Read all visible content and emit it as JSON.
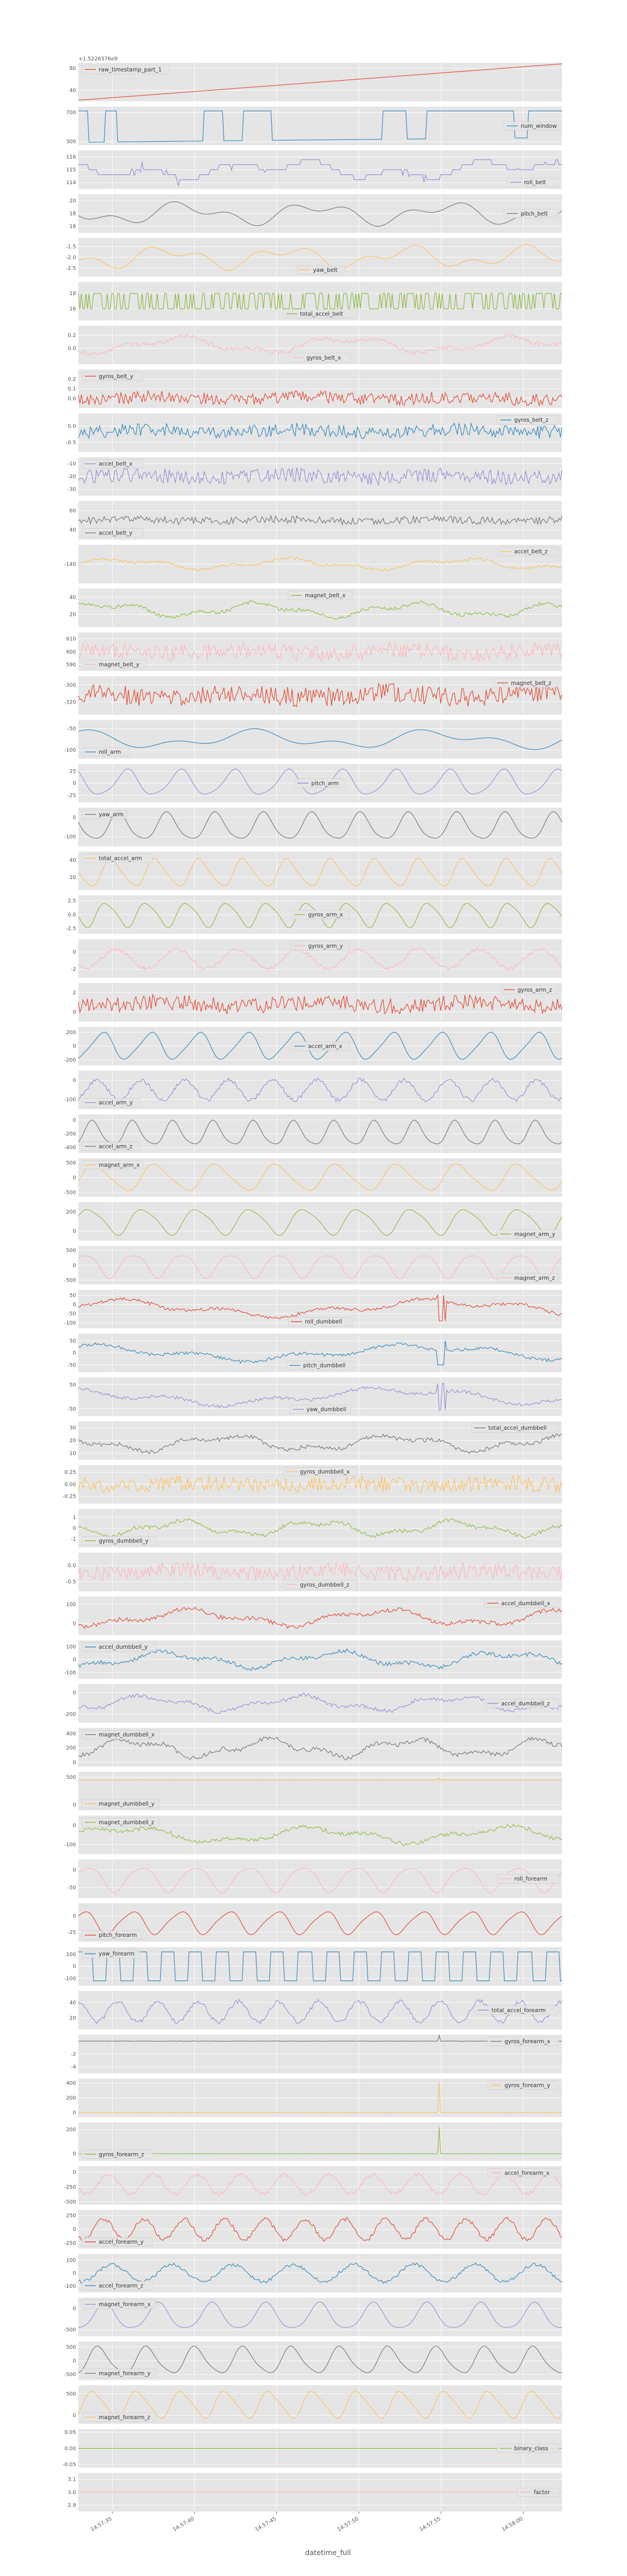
{
  "figure": {
    "offset_text": "+1.5226376e9",
    "xlabel": "datetime_full",
    "x_tick_labels": [
      "14:57:35",
      "14:57:40",
      "14:57:45",
      "14:57:50",
      "14:57:55",
      "14:58:00"
    ],
    "colors": [
      "#E24A33",
      "#348ABD",
      "#988ED5",
      "#777777",
      "#FBC15E",
      "#8EBA42",
      "#FFB5B8"
    ]
  },
  "chart_data": {
    "type": "line",
    "layout": "stacked-subplots",
    "grid": true,
    "legend_placement": "varies",
    "x_range": [
      "14:57:33",
      "14:58:03"
    ],
    "x_ticks": [
      "14:57:35",
      "14:57:40",
      "14:57:45",
      "14:57:50",
      "14:57:55",
      "14:58:00"
    ],
    "series": [
      {
        "name": "raw_timestamp_part_1",
        "color": "#E24A33",
        "legend": "upper-left",
        "yticks": [
          "80",
          "40"
        ],
        "ylim": [
          20,
          90
        ],
        "kind": "linear",
        "start": 22,
        "end": 88
      },
      {
        "name": "num_window",
        "color": "#348ABD",
        "legend": "right",
        "yticks": [
          "700",
          "300"
        ],
        "ylim": [
          250,
          780
        ],
        "kind": "steps",
        "low": 290,
        "high": 720
      },
      {
        "name": "roll_belt",
        "color": "#988ED5",
        "legend": "lower-right",
        "yticks": [
          "116",
          "115",
          "114"
        ],
        "ylim": [
          113.5,
          116.5
        ],
        "kind": "steps-noisy",
        "base": 115.0,
        "amp": 1.3
      },
      {
        "name": "pitch_belt",
        "color": "#777777",
        "legend": "right",
        "yticks": [
          "20",
          "18",
          "16"
        ],
        "ylim": [
          15,
          21
        ],
        "kind": "smooth",
        "base": 18,
        "amp": 2.0
      },
      {
        "name": "yaw_belt",
        "color": "#FBC15E",
        "legend": "lower-center",
        "yticks": [
          "-1.5",
          "-2.0",
          "-2.5"
        ],
        "ylim": [
          -2.9,
          -1.1
        ],
        "kind": "smooth",
        "base": -2.0,
        "amp": 0.6
      },
      {
        "name": "total_accel_belt",
        "color": "#8EBA42",
        "legend": "lower-center",
        "yticks": [
          "18",
          "16"
        ],
        "ylim": [
          14.5,
          19.5
        ],
        "kind": "binary",
        "low": 16,
        "high": 18
      },
      {
        "name": "gyros_belt_x",
        "color": "#FFB5B8",
        "legend": "lower-center",
        "yticks": [
          "0.2",
          "0.0"
        ],
        "ylim": [
          -0.25,
          0.35
        ],
        "kind": "smooth-noisy",
        "base": 0.05,
        "amp": 0.18
      },
      {
        "name": "gyros_belt_y",
        "color": "#E24A33",
        "legend": "upper-left",
        "yticks": [
          "0.2",
          "0.1",
          "0.0"
        ],
        "ylim": [
          -0.1,
          0.3
        ],
        "kind": "noisy",
        "base": 0.0,
        "amp": 0.08
      },
      {
        "name": "gyros_belt_z",
        "color": "#348ABD",
        "legend": "upper-right",
        "yticks": [
          "0.0",
          "-0.5"
        ],
        "ylim": [
          -0.8,
          0.4
        ],
        "kind": "noisy",
        "base": -0.15,
        "amp": 0.25
      },
      {
        "name": "accel_belt_x",
        "color": "#988ED5",
        "legend": "upper-left",
        "yticks": [
          "-10",
          "-20",
          "-30"
        ],
        "ylim": [
          -35,
          -5
        ],
        "kind": "noisy",
        "base": -20,
        "amp": 7
      },
      {
        "name": "accel_belt_y",
        "color": "#777777",
        "legend": "lower-left",
        "yticks": [
          "60",
          "40"
        ],
        "ylim": [
          30,
          70
        ],
        "kind": "noisy",
        "base": 50,
        "amp": 5
      },
      {
        "name": "accel_belt_z",
        "color": "#FBC15E",
        "legend": "upper-right",
        "yticks": [
          "-140"
        ],
        "ylim": [
          -160,
          -120
        ],
        "kind": "smooth-noisy",
        "base": -140,
        "amp": 8
      },
      {
        "name": "magnet_belt_x",
        "color": "#8EBA42",
        "legend": "upper-center",
        "yticks": [
          "40",
          "20"
        ],
        "ylim": [
          5,
          50
        ],
        "kind": "smooth-noisy",
        "base": 25,
        "amp": 12
      },
      {
        "name": "magnet_belt_y",
        "color": "#FFB5B8",
        "legend": "lower-left",
        "yticks": [
          "610",
          "600",
          "590"
        ],
        "ylim": [
          585,
          615
        ],
        "kind": "noisy",
        "base": 600,
        "amp": 8
      },
      {
        "name": "magnet_belt_z",
        "color": "#E24A33",
        "legend": "upper-right",
        "yticks": [
          "-300",
          "-320"
        ],
        "ylim": [
          -335,
          -290
        ],
        "kind": "noisy",
        "base": -312,
        "amp": 14
      },
      {
        "name": "roll_arm",
        "color": "#348ABD",
        "legend": "lower-left",
        "yticks": [
          "-50",
          "-100"
        ],
        "ylim": [
          -120,
          -30
        ],
        "kind": "smooth",
        "base": -75,
        "amp": 25
      },
      {
        "name": "pitch_arm",
        "color": "#988ED5",
        "legend": "center",
        "yticks": [
          "25",
          "0",
          "-25"
        ],
        "ylim": [
          -40,
          40
        ],
        "kind": "periodic",
        "base": 0,
        "amp": 30
      },
      {
        "name": "yaw_arm",
        "color": "#777777",
        "legend": "upper-left",
        "yticks": [
          "0",
          "-100"
        ],
        "ylim": [
          -150,
          50
        ],
        "kind": "periodic",
        "base": -50,
        "amp": 80
      },
      {
        "name": "total_accel_arm",
        "color": "#FBC15E",
        "legend": "upper-left",
        "yticks": [
          "40",
          "20"
        ],
        "ylim": [
          5,
          50
        ],
        "kind": "periodic",
        "base": 25,
        "amp": 18
      },
      {
        "name": "gyros_arm_x",
        "color": "#8EBA42",
        "legend": "center",
        "yticks": [
          "2.5",
          "0.0",
          "-2.5"
        ],
        "ylim": [
          -3.5,
          3.5
        ],
        "kind": "periodic",
        "base": 0,
        "amp": 2.5
      },
      {
        "name": "gyros_arm_y",
        "color": "#FFB5B8",
        "legend": "upper-center",
        "yticks": [
          "0",
          "-2"
        ],
        "ylim": [
          -3,
          1.5
        ],
        "kind": "periodic-noisy",
        "base": -0.8,
        "amp": 1.5
      },
      {
        "name": "gyros_arm_z",
        "color": "#E24A33",
        "legend": "upper-right",
        "yticks": [
          "2",
          "0"
        ],
        "ylim": [
          -1,
          3
        ],
        "kind": "noisy",
        "base": 0.8,
        "amp": 1.0
      },
      {
        "name": "accel_arm_x",
        "color": "#348ABD",
        "legend": "center",
        "yticks": [
          "200",
          "0",
          "-200"
        ],
        "ylim": [
          -280,
          280
        ],
        "kind": "periodic",
        "base": 0,
        "amp": 220
      },
      {
        "name": "accel_arm_y",
        "color": "#988ED5",
        "legend": "lower-left",
        "yticks": [
          "0",
          "-100"
        ],
        "ylim": [
          -150,
          50
        ],
        "kind": "periodic-noisy",
        "base": -50,
        "amp": 70
      },
      {
        "name": "accel_arm_z",
        "color": "#777777",
        "legend": "lower-left",
        "yticks": [
          "0",
          "-200",
          "-400"
        ],
        "ylim": [
          -480,
          80
        ],
        "kind": "periodic",
        "base": -200,
        "amp": 200
      },
      {
        "name": "magnet_arm_x",
        "color": "#FBC15E",
        "legend": "upper-left",
        "yticks": [
          "500",
          "0",
          "-500"
        ],
        "ylim": [
          -650,
          650
        ],
        "kind": "periodic",
        "base": 0,
        "amp": 500
      },
      {
        "name": "magnet_arm_y",
        "color": "#8EBA42",
        "legend": "lower-right",
        "yticks": [
          "200",
          "0"
        ],
        "ylim": [
          -100,
          300
        ],
        "kind": "periodic",
        "base": 100,
        "amp": 150
      },
      {
        "name": "magnet_arm_z",
        "color": "#FFB5B8",
        "legend": "lower-right",
        "yticks": [
          "500",
          "0",
          "-500"
        ],
        "ylim": [
          -650,
          650
        ],
        "kind": "periodic",
        "base": 0,
        "amp": 450
      },
      {
        "name": "roll_dumbbell",
        "color": "#E24A33",
        "legend": "lower-center",
        "yticks": [
          "50",
          "0",
          "-50",
          "-100"
        ],
        "ylim": [
          -130,
          80
        ],
        "kind": "drift-steps",
        "base": -20,
        "amp": 70
      },
      {
        "name": "pitch_dumbbell",
        "color": "#348ABD",
        "legend": "lower-center",
        "yticks": [
          "50",
          "0",
          "-50"
        ],
        "ylim": [
          -80,
          80
        ],
        "kind": "drift-steps",
        "base": 0,
        "amp": 50
      },
      {
        "name": "yaw_dumbbell",
        "color": "#988ED5",
        "legend": "lower-center",
        "yticks": [
          "50",
          "-50"
        ],
        "ylim": [
          -80,
          80
        ],
        "kind": "drift-steps",
        "base": 0,
        "amp": 55
      },
      {
        "name": "total_accel_dumbbell",
        "color": "#777777",
        "legend": "upper-right",
        "yticks": [
          "30",
          "20",
          "10"
        ],
        "ylim": [
          5,
          35
        ],
        "kind": "smooth-noisy",
        "base": 18,
        "amp": 9
      },
      {
        "name": "gyros_dumbbell_x",
        "color": "#FBC15E",
        "legend": "upper-center",
        "yticks": [
          "0.25",
          "0.00",
          "-0.25"
        ],
        "ylim": [
          -0.4,
          0.4
        ],
        "kind": "noisy",
        "base": 0,
        "amp": 0.2
      },
      {
        "name": "gyros_dumbbell_y",
        "color": "#8EBA42",
        "legend": "lower-left",
        "yticks": [
          "1",
          "0",
          "-1"
        ],
        "ylim": [
          -1.8,
          1.8
        ],
        "kind": "smooth-noisy",
        "base": 0,
        "amp": 1.0
      },
      {
        "name": "gyros_dumbbell_z",
        "color": "#FFB5B8",
        "legend": "lower-center",
        "yticks": [
          "0.0",
          "-0.5"
        ],
        "ylim": [
          -0.8,
          0.4
        ],
        "kind": "noisy",
        "base": -0.2,
        "amp": 0.3
      },
      {
        "name": "accel_dumbbell_x",
        "color": "#E24A33",
        "legend": "upper-right",
        "yticks": [
          "100",
          "0"
        ],
        "ylim": [
          -60,
          140
        ],
        "kind": "smooth-noisy",
        "base": 30,
        "amp": 60
      },
      {
        "name": "accel_dumbbell_y",
        "color": "#348ABD",
        "legend": "upper-left",
        "yticks": [
          "100",
          "0",
          "-100"
        ],
        "ylim": [
          -150,
          150
        ],
        "kind": "smooth-noisy",
        "base": 0,
        "amp": 90
      },
      {
        "name": "accel_dumbbell_z",
        "color": "#988ED5",
        "legend": "right",
        "yticks": [
          "0",
          "-200"
        ],
        "ylim": [
          -280,
          80
        ],
        "kind": "smooth-noisy",
        "base": -100,
        "amp": 100
      },
      {
        "name": "magnet_dumbbell_x",
        "color": "#777777",
        "legend": "upper-left",
        "yticks": [
          "400",
          "200",
          "0"
        ],
        "ylim": [
          -60,
          480
        ],
        "kind": "smooth-noisy",
        "base": 200,
        "amp": 180
      },
      {
        "name": "magnet_dumbbell_y",
        "color": "#FBC15E",
        "legend": "lower-left",
        "yticks": [
          "500",
          "0"
        ],
        "ylim": [
          -100,
          600
        ],
        "kind": "flat-spike",
        "base": 450,
        "amp": 40
      },
      {
        "name": "magnet_dumbbell_z",
        "color": "#8EBA42",
        "legend": "upper-left",
        "yticks": [
          "0",
          "-100"
        ],
        "ylim": [
          -150,
          50
        ],
        "kind": "smooth-noisy",
        "base": -50,
        "amp": 60
      },
      {
        "name": "roll_forearm",
        "color": "#FFB5B8",
        "legend": "right",
        "yticks": [
          "0",
          "-50"
        ],
        "ylim": [
          -80,
          30
        ],
        "kind": "periodic",
        "base": -25,
        "amp": 40
      },
      {
        "name": "pitch_forearm",
        "color": "#E24A33",
        "legend": "lower-left",
        "yticks": [
          "0",
          "-25"
        ],
        "ylim": [
          -40,
          20
        ],
        "kind": "periodic",
        "base": -10,
        "amp": 20
      },
      {
        "name": "yaw_forearm",
        "color": "#348ABD",
        "legend": "upper-left",
        "yticks": [
          "100",
          "0",
          "-100"
        ],
        "ylim": [
          -160,
          160
        ],
        "kind": "square",
        "low": -120,
        "high": 120
      },
      {
        "name": "total_accel_forearm",
        "color": "#988ED5",
        "legend": "right",
        "yticks": [
          "40",
          "20"
        ],
        "ylim": [
          5,
          55
        ],
        "kind": "periodic-noisy",
        "base": 28,
        "amp": 18
      },
      {
        "name": "gyros_forearm_x",
        "color": "#777777",
        "legend": "upper-right",
        "yticks": [
          "-2",
          "-4"
        ],
        "ylim": [
          -5,
          1
        ],
        "kind": "flat-spike",
        "base": 0,
        "amp": 5
      },
      {
        "name": "gyros_forearm_y",
        "color": "#FBC15E",
        "legend": "upper-right",
        "yticks": [
          "400",
          "200",
          "0"
        ],
        "ylim": [
          -60,
          460
        ],
        "kind": "flat-spike",
        "base": 0,
        "amp": 420
      },
      {
        "name": "gyros_forearm_z",
        "color": "#8EBA42",
        "legend": "lower-left",
        "yticks": [
          "200",
          "0"
        ],
        "ylim": [
          -60,
          260
        ],
        "kind": "flat-spike",
        "base": 0,
        "amp": 220
      },
      {
        "name": "accel_forearm_x",
        "color": "#FFB5B8",
        "legend": "upper-right",
        "yticks": [
          "0",
          "-250",
          "-500"
        ],
        "ylim": [
          -550,
          100
        ],
        "kind": "periodic-noisy",
        "base": -200,
        "amp": 220
      },
      {
        "name": "accel_forearm_y",
        "color": "#E24A33",
        "legend": "lower-left",
        "yticks": [
          "250",
          "0",
          "-250"
        ],
        "ylim": [
          -350,
          350
        ],
        "kind": "periodic-noisy",
        "base": 0,
        "amp": 250
      },
      {
        "name": "accel_forearm_z",
        "color": "#348ABD",
        "legend": "lower-left",
        "yticks": [
          "100",
          "0",
          "-100"
        ],
        "ylim": [
          -150,
          150
        ],
        "kind": "periodic-noisy",
        "base": 0,
        "amp": 90
      },
      {
        "name": "magnet_forearm_x",
        "color": "#988ED5",
        "legend": "upper-left",
        "yticks": [
          "0",
          "-500"
        ],
        "ylim": [
          -650,
          250
        ],
        "kind": "periodic",
        "base": -200,
        "amp": 350
      },
      {
        "name": "magnet_forearm_y",
        "color": "#777777",
        "legend": "lower-left",
        "yticks": [
          "500",
          "0",
          "-500"
        ],
        "ylim": [
          -700,
          700
        ],
        "kind": "periodic",
        "base": 0,
        "amp": 550
      },
      {
        "name": "magnet_forearm_z",
        "color": "#FBC15E",
        "legend": "lower-left",
        "yticks": [
          "500",
          "0"
        ],
        "ylim": [
          -200,
          700
        ],
        "kind": "periodic",
        "base": 250,
        "amp": 350
      },
      {
        "name": "binary_class",
        "color": "#8EBA42",
        "legend": "right",
        "yticks": [
          "0.05",
          "0.00",
          "-0.05"
        ],
        "ylim": [
          -0.06,
          0.06
        ],
        "kind": "constant",
        "base": 0
      },
      {
        "name": "factor",
        "color": "#FFB5B8",
        "legend": "right",
        "yticks": [
          "3.1",
          "3.0",
          "2.9"
        ],
        "ylim": [
          2.85,
          3.15
        ],
        "kind": "constant",
        "base": 3.0
      }
    ]
  }
}
